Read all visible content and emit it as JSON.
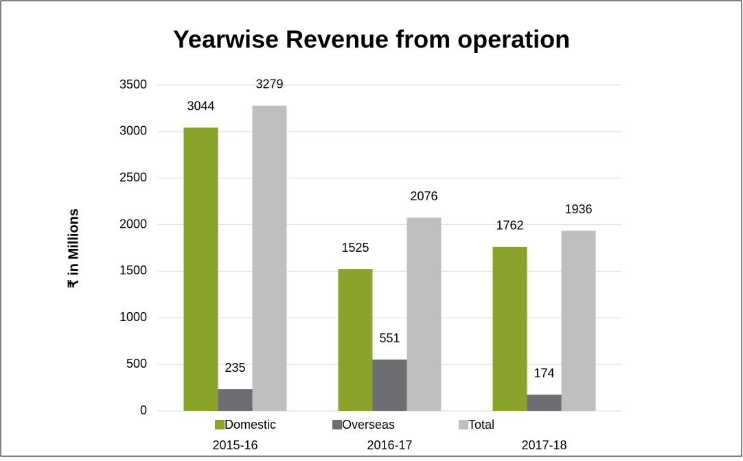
{
  "chart_data": {
    "type": "bar",
    "title": "Yearwise Revenue from operation",
    "y_label": "₹ in Millions",
    "categories": [
      "2015-16",
      "2016-17",
      "2017-18"
    ],
    "series": [
      {
        "name": "Domestic",
        "color": "#8aa32a",
        "values": [
          3044,
          1525,
          1762
        ]
      },
      {
        "name": "Overseas",
        "color": "#6d6e71",
        "values": [
          235,
          551,
          174
        ]
      },
      {
        "name": "Total",
        "color": "#bfbfbf",
        "values": [
          3279,
          2076,
          1936
        ]
      }
    ],
    "ylim": [
      0,
      3500
    ],
    "yticks": [
      0,
      500,
      1000,
      1500,
      2000,
      2500,
      3000,
      3500
    ],
    "grid": true,
    "legend": "bottom"
  }
}
